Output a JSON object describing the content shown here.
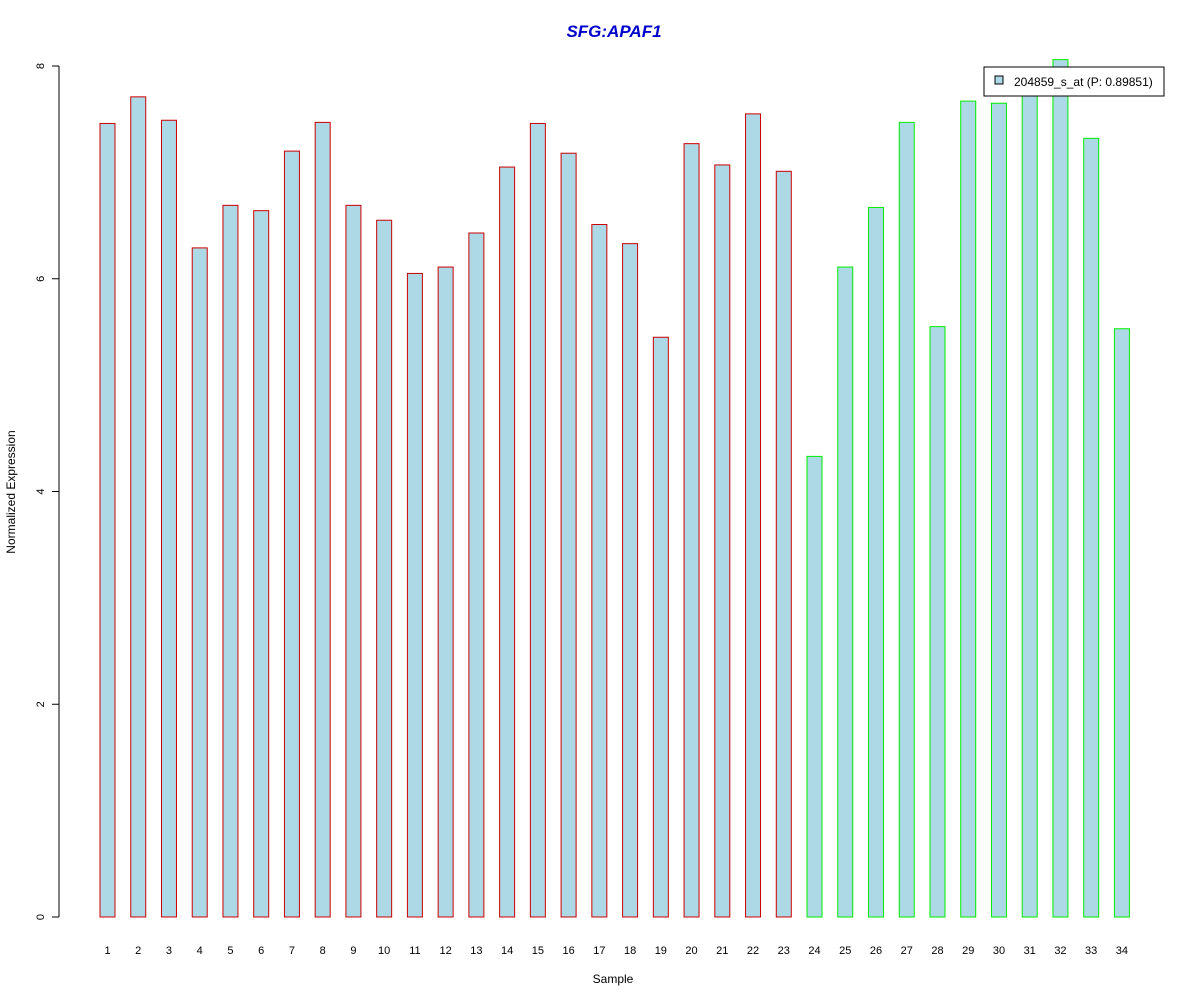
{
  "chart_data": {
    "type": "bar",
    "title": "SFG:APAF1",
    "title_color": "#0000cc",
    "xlabel": "Sample",
    "ylabel": "Normalized Expression",
    "ylim": [
      0,
      8
    ],
    "yticks": [
      0,
      2,
      4,
      6,
      8
    ],
    "grid": false,
    "legend": {
      "position": "top-right",
      "entries": [
        "204859_s_at (P: 0.89851)"
      ]
    },
    "bar_fill": "#add8e6",
    "group_colors": {
      "group1": "#cc0000",
      "group2": "#00ee00"
    },
    "categories": [
      "1",
      "2",
      "3",
      "4",
      "5",
      "6",
      "7",
      "8",
      "9",
      "10",
      "11",
      "12",
      "13",
      "14",
      "15",
      "16",
      "17",
      "18",
      "19",
      "20",
      "21",
      "22",
      "23",
      "24",
      "25",
      "26",
      "27",
      "28",
      "29",
      "30",
      "31",
      "32",
      "33",
      "34"
    ],
    "series": [
      {
        "name": "204859_s_at (P: 0.89851)",
        "values": [
          7.46,
          7.71,
          7.49,
          6.29,
          6.69,
          6.64,
          7.2,
          7.47,
          6.69,
          6.55,
          6.05,
          6.11,
          6.43,
          7.05,
          7.46,
          7.18,
          6.51,
          6.33,
          5.45,
          7.27,
          7.07,
          7.55,
          7.01,
          4.33,
          6.11,
          6.67,
          7.47,
          5.55,
          7.67,
          7.65,
          7.74,
          8.06,
          7.32,
          5.53
        ],
        "groups": [
          "group1",
          "group1",
          "group1",
          "group1",
          "group1",
          "group1",
          "group1",
          "group1",
          "group1",
          "group1",
          "group1",
          "group1",
          "group1",
          "group1",
          "group1",
          "group1",
          "group1",
          "group1",
          "group1",
          "group1",
          "group1",
          "group1",
          "group1",
          "group2",
          "group2",
          "group2",
          "group2",
          "group2",
          "group2",
          "group2",
          "group2",
          "group2",
          "group2",
          "group2"
        ]
      }
    ]
  }
}
